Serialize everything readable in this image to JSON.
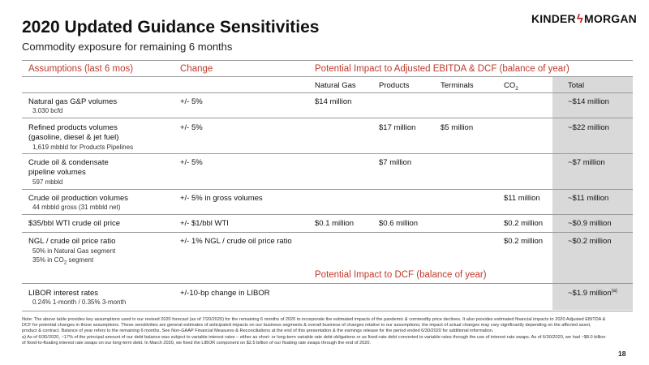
{
  "title": "2020 Updated Guidance Sensitivities",
  "subtitle": "Commodity exposure for remaining 6 months",
  "logo": {
    "left": "KINDER",
    "right": "MORGAN"
  },
  "headers": {
    "assumptions": "Assumptions (last 6 mos)",
    "change": "Change",
    "impact": "Potential Impact to Adjusted EBITDA & DCF (balance of year)",
    "impact_dcf": "Potential Impact to DCF (balance of year)"
  },
  "subheaders": {
    "natural_gas": "Natural Gas",
    "products": "Products",
    "terminals": "Terminals",
    "co2_prefix": "CO",
    "co2_sub": "2",
    "total": "Total"
  },
  "rows": [
    {
      "label": "Natural gas G&P volumes",
      "detail": "3.030 bcfd",
      "change": "+/- 5%",
      "natural_gas": "$14 million",
      "products": "",
      "terminals": "",
      "co2": "",
      "total": "~$14 million"
    },
    {
      "label": "Refined products volumes",
      "label2": "(gasoline, diesel & jet fuel)",
      "detail": "1,619 mbbld for Products Pipelines",
      "change": "+/- 5%",
      "natural_gas": "",
      "products": "$17 million",
      "terminals": "$5 million",
      "co2": "",
      "total": "~$22 million"
    },
    {
      "label": "Crude oil & condensate",
      "label2": "pipeline volumes",
      "detail": "597 mbbld",
      "change": "+/- 5%",
      "natural_gas": "",
      "products": "$7 million",
      "terminals": "",
      "co2": "",
      "total": "~$7 million"
    },
    {
      "label": "Crude oil production volumes",
      "detail": "44 mbbld gross (31 mbbld net)",
      "change": "+/- 5% in gross volumes",
      "natural_gas": "",
      "products": "",
      "terminals": "",
      "co2": "$11 million",
      "total": "~$11 million"
    },
    {
      "label": "$35/bbl WTI crude oil price",
      "change": "+/- $1/bbl WTI",
      "natural_gas": "$0.1 million",
      "products": "$0.6 million",
      "terminals": "",
      "co2": "$0.2 million",
      "total": "~$0.9 million"
    },
    {
      "label": "NGL / crude oil price ratio",
      "detail": "50% in Natural Gas segment",
      "detail2_prefix": "35% in CO",
      "detail2_sub": "2",
      "detail2_suffix": " segment",
      "change": "+/- 1% NGL / crude oil price ratio",
      "natural_gas": "",
      "products": "",
      "terminals": "",
      "co2": "$0.2 million",
      "total": "~$0.2 million"
    },
    {
      "label": "LIBOR interest rates",
      "detail": "0.24% 1-month / 0.35% 3-month",
      "change": "+/-10-bp change in LIBOR",
      "total": "~$1.9 million",
      "total_sup": "(a)"
    }
  ],
  "notes": {
    "note": "Note:  The above table provides key assumptions used in our revised 2020 forecast (as of 7/20/2020) for the remaining 6 months of 2020 to incorporate the estimated impacts of the pandemic & commodity price declines. It also provides estimated financial impacts to 2020 Adjusted EBITDA & DCF for potential changes in those assumptions. These sensitivities are general estimates of anticipated impacts on our business segments & overall business of changes relative to our assumptions; the impact of actual changes may vary significantly depending on the affected asset, product & contract. Balance of year refers to the remaining 6 months. See Non-GAAP Financial Measures & Reconciliations at the end of this presentation & the earnings release for the period ended 6/30/2020 for additional information.",
    "a": "a)   As of 6/30/2020, ~17% of the principal amount of our debt balance was subject to variable interest rates – either as short- or long-term variable rate debt obligations or as fixed-rate debt converted to variable rates through the use of interest rate swaps. As of 6/30/2020, we had ~$8.0 billion of fixed-to-floating interest rate swaps on our long-term debt. In March 2020, we fixed the LIBOR component on $2.5 billion of our floating rate swaps through the end of 2020."
  },
  "page_number": "18"
}
